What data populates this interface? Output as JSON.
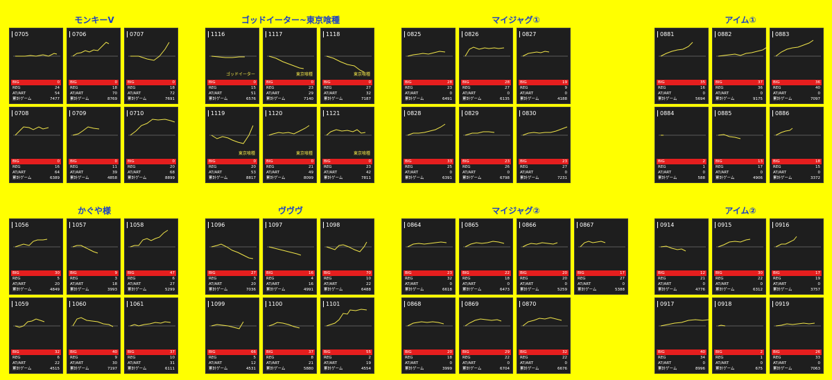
{
  "groups": [
    {
      "title": "モンキーV",
      "cards": [
        {
          "id": "0705",
          "big": "0",
          "reg": "24",
          "atart": "54",
          "total": "7477"
        },
        {
          "id": "0706",
          "big": "0",
          "reg": "18",
          "atart": "70",
          "total": "8769"
        },
        {
          "id": "0707",
          "big": "0",
          "reg": "18",
          "atart": "72",
          "total": "7691"
        },
        {
          "id": "0708",
          "big": "0",
          "reg": "16",
          "atart": "64",
          "total": "6389"
        },
        {
          "id": "0709",
          "big": "0",
          "reg": "11",
          "atart": "39",
          "total": "4858"
        },
        {
          "id": "0710",
          "big": "0",
          "reg": "20",
          "atart": "68",
          "total": "8899"
        }
      ]
    },
    {
      "title": "ゴッドイーター~東京喰種",
      "cards": [
        {
          "id": "1116",
          "big": "0",
          "reg": "15",
          "atart": "51",
          "total": "6576",
          "tag": "ゴッドイーター"
        },
        {
          "id": "1117",
          "big": "0",
          "reg": "23",
          "atart": "29",
          "total": "7140",
          "tag": "東京喰種"
        },
        {
          "id": "1118",
          "big": "0",
          "reg": "27",
          "atart": "32",
          "total": "7187",
          "tag": "東京喰種"
        },
        {
          "id": "1119",
          "big": "0",
          "reg": "20",
          "atart": "53",
          "total": "8817",
          "tag": "東京喰種"
        },
        {
          "id": "1120",
          "big": "0",
          "reg": "21",
          "atart": "49",
          "total": "8099",
          "tag": "東京喰種"
        },
        {
          "id": "1121",
          "big": "0",
          "reg": "23",
          "atart": "42",
          "total": "7811",
          "tag": "東京喰種"
        }
      ]
    },
    {
      "title": "マイジャグ①",
      "cards": [
        {
          "id": "0825",
          "big": "28",
          "reg": "23",
          "atart": "0",
          "total": "6491"
        },
        {
          "id": "0826",
          "big": "28",
          "reg": "27",
          "atart": "0",
          "total": "6135"
        },
        {
          "id": "0827",
          "big": "19",
          "reg": "9",
          "atart": "0",
          "total": "4188"
        },
        {
          "id": "0828",
          "big": "33",
          "reg": "25",
          "atart": "0",
          "total": "6391"
        },
        {
          "id": "0829",
          "big": "23",
          "reg": "26",
          "atart": "0",
          "total": "6798"
        },
        {
          "id": "0830",
          "big": "23",
          "reg": "27",
          "atart": "0",
          "total": "7231"
        }
      ]
    },
    {
      "title": "アイム①",
      "cards": [
        {
          "id": "0881",
          "big": "35",
          "reg": "16",
          "atart": "0",
          "total": "5694"
        },
        {
          "id": "0882",
          "big": "37",
          "reg": "36",
          "atart": "0",
          "total": "9175"
        },
        {
          "id": "0883",
          "big": "36",
          "reg": "40",
          "atart": "0",
          "total": "7097"
        },
        {
          "id": "0884",
          "big": "2",
          "reg": "1",
          "atart": "0",
          "total": "588"
        },
        {
          "id": "0885",
          "big": "13",
          "reg": "17",
          "atart": "0",
          "total": "4906"
        },
        {
          "id": "0886",
          "big": "18",
          "reg": "15",
          "atart": "0",
          "total": "3372"
        }
      ]
    },
    {
      "title": "かぐや様",
      "cards": [
        {
          "id": "1056",
          "big": "30",
          "reg": "5",
          "atart": "20",
          "total": "4849"
        },
        {
          "id": "1057",
          "big": "9",
          "reg": "3",
          "atart": "18",
          "total": "3993"
        },
        {
          "id": "1058",
          "big": "47",
          "reg": "6",
          "atart": "27",
          "total": "5299"
        },
        {
          "id": "1059",
          "big": "32",
          "reg": "6",
          "atart": "22",
          "total": "4515"
        },
        {
          "id": "1060",
          "big": "40",
          "reg": "9",
          "atart": "30",
          "total": "7197"
        },
        {
          "id": "1061",
          "big": "37",
          "reg": "10",
          "atart": "31",
          "total": "6111"
        }
      ]
    },
    {
      "title": "ヴヴヴ",
      "cards": [
        {
          "id": "1096",
          "big": "27",
          "reg": "3",
          "atart": "20",
          "total": "7036"
        },
        {
          "id": "1097",
          "big": "16",
          "reg": "4",
          "atart": "16",
          "total": "4991"
        },
        {
          "id": "1098",
          "big": "70",
          "reg": "10",
          "atart": "22",
          "total": "6488"
        },
        {
          "id": "1099",
          "big": "66",
          "reg": "5",
          "atart": "12",
          "total": "4531"
        },
        {
          "id": "1100",
          "big": "37",
          "reg": "8",
          "atart": "21",
          "total": "5880"
        },
        {
          "id": "1101",
          "big": "55",
          "reg": "2",
          "atart": "19",
          "total": "4554"
        }
      ]
    },
    {
      "title": "マイジャグ②",
      "cards": [
        {
          "id": "0864",
          "big": "23",
          "reg": "32",
          "atart": "0",
          "total": "6618"
        },
        {
          "id": "0865",
          "big": "22",
          "reg": "18",
          "atart": "0",
          "total": "6473"
        },
        {
          "id": "0866",
          "big": "20",
          "reg": "20",
          "atart": "0",
          "total": "5259"
        },
        {
          "id": "0867",
          "big": "17",
          "reg": "27",
          "atart": "0",
          "total": "5388"
        },
        {
          "id": "0868",
          "big": "20",
          "reg": "18",
          "atart": "0",
          "total": "3999"
        },
        {
          "id": "0869",
          "big": "29",
          "reg": "22",
          "atart": "0",
          "total": "6704"
        },
        {
          "id": "0870",
          "big": "32",
          "reg": "22",
          "atart": "0",
          "total": "6676"
        }
      ]
    },
    {
      "title": "アイム②",
      "cards": [
        {
          "id": "0914",
          "big": "12",
          "reg": "21",
          "atart": "0",
          "total": "4776"
        },
        {
          "id": "0915",
          "big": "30",
          "reg": "22",
          "atart": "0",
          "total": "6312"
        },
        {
          "id": "0916",
          "big": "17",
          "reg": "19",
          "atart": "0",
          "total": "3757"
        },
        {
          "id": "0917",
          "big": "40",
          "reg": "34",
          "atart": "0",
          "total": "8996"
        },
        {
          "id": "0918",
          "big": "2",
          "reg": "1",
          "atart": "0",
          "total": "675"
        },
        {
          "id": "0919",
          "big": "26",
          "reg": "33",
          "atart": "0",
          "total": "7063"
        }
      ]
    }
  ],
  "labels": {
    "big": "BIG",
    "reg": "REG",
    "atart": "AT/ART",
    "total": "累計ゲーム"
  },
  "colors": {
    "background": "#ffff00",
    "title": "#1a3fc7",
    "card": "#1e1e1e",
    "graph_line": "#f2e64a",
    "big_bar": "#e51e1e",
    "baseline": "#9a9a9a"
  }
}
